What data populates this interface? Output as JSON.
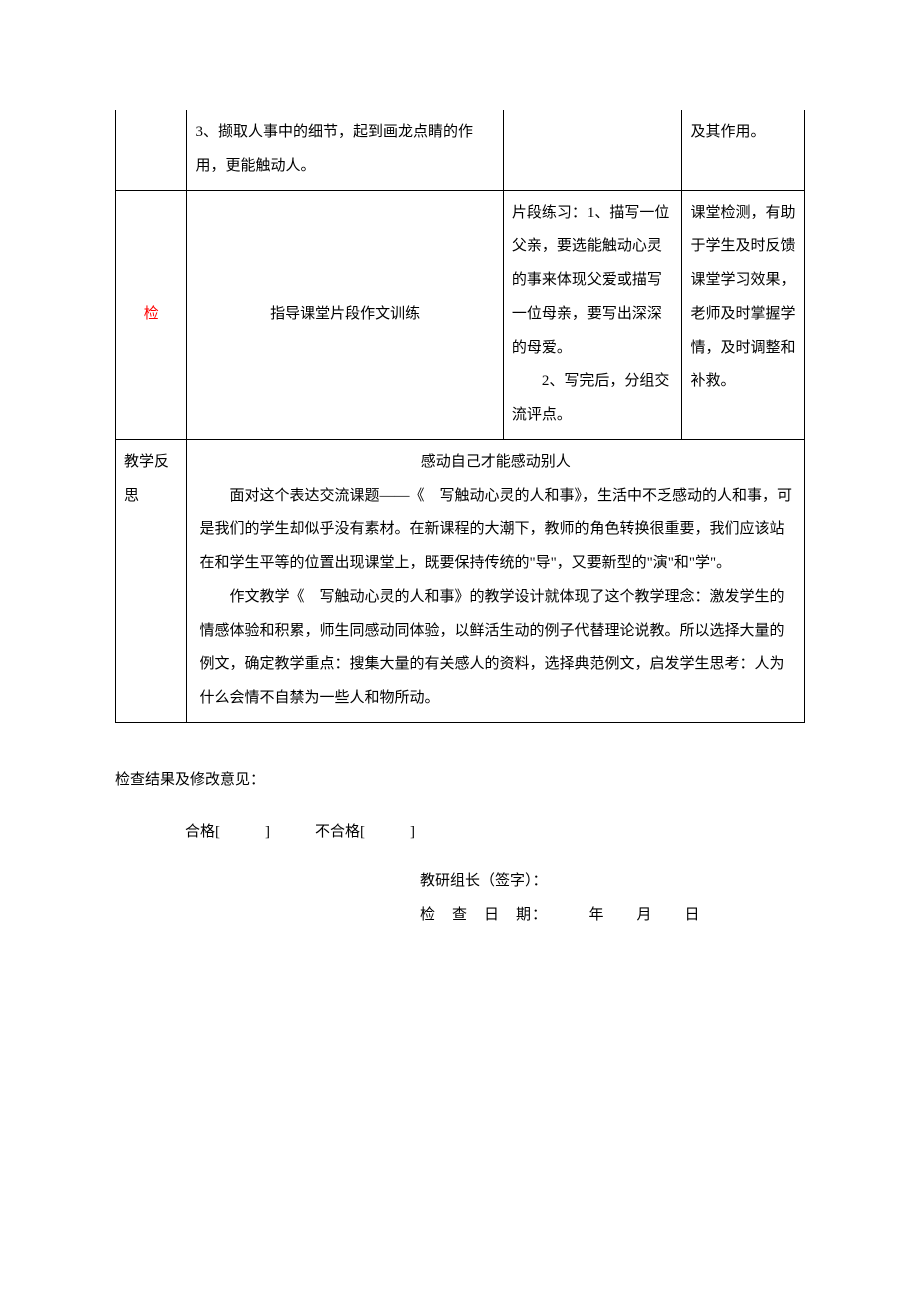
{
  "table": {
    "colors": {
      "border": "#000000",
      "text": "#000000",
      "accent": "#ff0000",
      "background": "#ffffff"
    },
    "row1": {
      "main": "3、撷取人事中的细节，起到画龙点睛的作用，更能触动人。",
      "remark": "及其作用。"
    },
    "row2": {
      "label": "检",
      "main": "指导课堂片段作文训练",
      "student": "片段练习：1、描写一位父亲，要选能触动心灵的事来体现父爱或描写一位母亲，要写出深深的母爱。\n　　2、写完后，分组交流评点。",
      "remark": "课堂检测，有助于学生及时反馈课堂学习效果，老师及时掌握学情，及时调整和补救。"
    },
    "row3": {
      "label": "教学反思",
      "title": "感动自己才能感动别人",
      "p1": "面对这个表达交流课题——《　写触动心灵的人和事》，生活中不乏感动的人和事，可是我们的学生却似乎没有素材。在新课程的大潮下，教师的角色转换很重要，我们应该站在和学生平等的位置出现课堂上，既要保持传统的\"导\"，又要新型的\"演\"和\"学\"。",
      "p2": "作文教学《　写触动心灵的人和事》的教学设计就体现了这个教学理念：激发学生的情感体验和积累，师生同感动同体验，以鲜活生动的例子代替理论说教。所以选择大量的例文，确定教学重点：搜集大量的有关感人的资料，选择典范例文，启发学生思考：人为什么会情不自禁为一些人和物所动。"
    }
  },
  "footer": {
    "line1": "检查结果及修改意见：",
    "line2": "合格[　　　]　　　不合格[　　　]",
    "line3": "教研组长（签字）：",
    "line4": "检　查　日　期：　　　年　　月　　日"
  }
}
